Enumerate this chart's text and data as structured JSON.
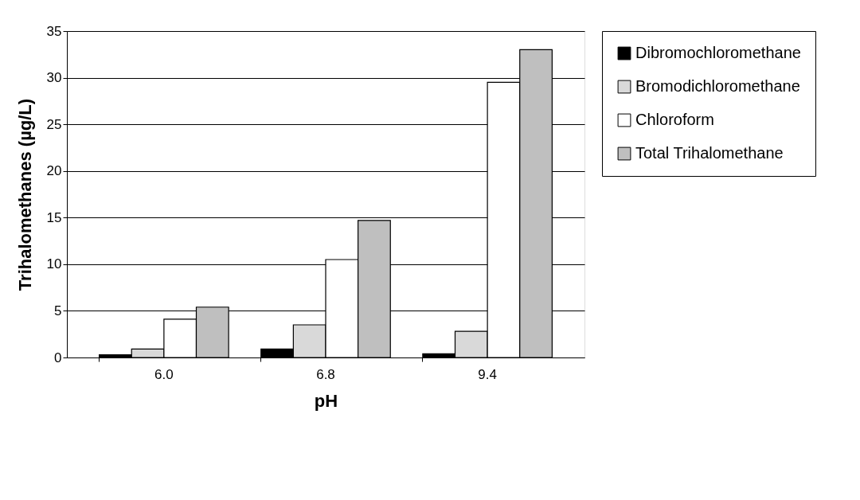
{
  "chart_data": {
    "type": "bar",
    "xlabel": "pH",
    "ylabel": "Trihalomethanes (µg/L)",
    "categories": [
      "6.0",
      "6.8",
      "9.4"
    ],
    "series": [
      {
        "name": "Dibromochloromethane",
        "color": "#000000",
        "values": [
          0.3,
          0.9,
          0.4
        ]
      },
      {
        "name": "Bromodichloromethane",
        "color": "#d9d9d9",
        "values": [
          0.9,
          3.5,
          2.8
        ]
      },
      {
        "name": "Chloroform",
        "color": "#ffffff",
        "values": [
          4.1,
          10.5,
          29.5
        ]
      },
      {
        "name": "Total Trihalomethane",
        "color": "#bfbfbf",
        "values": [
          5.4,
          14.7,
          33.0
        ]
      }
    ],
    "ylim": [
      0,
      35
    ],
    "yticks": [
      0,
      5,
      10,
      15,
      20,
      25,
      30,
      35
    ],
    "grid": "y",
    "legend": "right"
  }
}
